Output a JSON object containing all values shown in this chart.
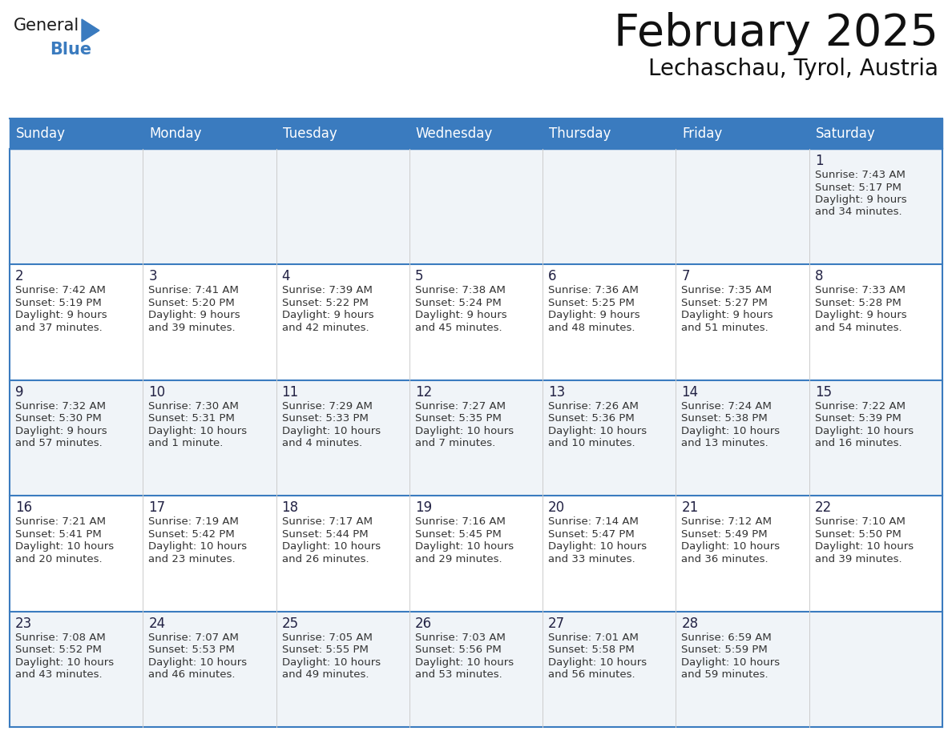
{
  "title": "February 2025",
  "subtitle": "Lechaschau, Tyrol, Austria",
  "header_bg": "#3a7bbf",
  "header_text_color": "#ffffff",
  "grid_line_color": "#3a7bbf",
  "day_headers": [
    "Sunday",
    "Monday",
    "Tuesday",
    "Wednesday",
    "Thursday",
    "Friday",
    "Saturday"
  ],
  "days": [
    {
      "day": 1,
      "col": 6,
      "row": 0,
      "sunrise": "7:43 AM",
      "sunset": "5:17 PM",
      "daylight": "9 hours and 34 minutes."
    },
    {
      "day": 2,
      "col": 0,
      "row": 1,
      "sunrise": "7:42 AM",
      "sunset": "5:19 PM",
      "daylight": "9 hours and 37 minutes."
    },
    {
      "day": 3,
      "col": 1,
      "row": 1,
      "sunrise": "7:41 AM",
      "sunset": "5:20 PM",
      "daylight": "9 hours and 39 minutes."
    },
    {
      "day": 4,
      "col": 2,
      "row": 1,
      "sunrise": "7:39 AM",
      "sunset": "5:22 PM",
      "daylight": "9 hours and 42 minutes."
    },
    {
      "day": 5,
      "col": 3,
      "row": 1,
      "sunrise": "7:38 AM",
      "sunset": "5:24 PM",
      "daylight": "9 hours and 45 minutes."
    },
    {
      "day": 6,
      "col": 4,
      "row": 1,
      "sunrise": "7:36 AM",
      "sunset": "5:25 PM",
      "daylight": "9 hours and 48 minutes."
    },
    {
      "day": 7,
      "col": 5,
      "row": 1,
      "sunrise": "7:35 AM",
      "sunset": "5:27 PM",
      "daylight": "9 hours and 51 minutes."
    },
    {
      "day": 8,
      "col": 6,
      "row": 1,
      "sunrise": "7:33 AM",
      "sunset": "5:28 PM",
      "daylight": "9 hours and 54 minutes."
    },
    {
      "day": 9,
      "col": 0,
      "row": 2,
      "sunrise": "7:32 AM",
      "sunset": "5:30 PM",
      "daylight": "9 hours and 57 minutes."
    },
    {
      "day": 10,
      "col": 1,
      "row": 2,
      "sunrise": "7:30 AM",
      "sunset": "5:31 PM",
      "daylight": "10 hours and 1 minute."
    },
    {
      "day": 11,
      "col": 2,
      "row": 2,
      "sunrise": "7:29 AM",
      "sunset": "5:33 PM",
      "daylight": "10 hours and 4 minutes."
    },
    {
      "day": 12,
      "col": 3,
      "row": 2,
      "sunrise": "7:27 AM",
      "sunset": "5:35 PM",
      "daylight": "10 hours and 7 minutes."
    },
    {
      "day": 13,
      "col": 4,
      "row": 2,
      "sunrise": "7:26 AM",
      "sunset": "5:36 PM",
      "daylight": "10 hours and 10 minutes."
    },
    {
      "day": 14,
      "col": 5,
      "row": 2,
      "sunrise": "7:24 AM",
      "sunset": "5:38 PM",
      "daylight": "10 hours and 13 minutes."
    },
    {
      "day": 15,
      "col": 6,
      "row": 2,
      "sunrise": "7:22 AM",
      "sunset": "5:39 PM",
      "daylight": "10 hours and 16 minutes."
    },
    {
      "day": 16,
      "col": 0,
      "row": 3,
      "sunrise": "7:21 AM",
      "sunset": "5:41 PM",
      "daylight": "10 hours and 20 minutes."
    },
    {
      "day": 17,
      "col": 1,
      "row": 3,
      "sunrise": "7:19 AM",
      "sunset": "5:42 PM",
      "daylight": "10 hours and 23 minutes."
    },
    {
      "day": 18,
      "col": 2,
      "row": 3,
      "sunrise": "7:17 AM",
      "sunset": "5:44 PM",
      "daylight": "10 hours and 26 minutes."
    },
    {
      "day": 19,
      "col": 3,
      "row": 3,
      "sunrise": "7:16 AM",
      "sunset": "5:45 PM",
      "daylight": "10 hours and 29 minutes."
    },
    {
      "day": 20,
      "col": 4,
      "row": 3,
      "sunrise": "7:14 AM",
      "sunset": "5:47 PM",
      "daylight": "10 hours and 33 minutes."
    },
    {
      "day": 21,
      "col": 5,
      "row": 3,
      "sunrise": "7:12 AM",
      "sunset": "5:49 PM",
      "daylight": "10 hours and 36 minutes."
    },
    {
      "day": 22,
      "col": 6,
      "row": 3,
      "sunrise": "7:10 AM",
      "sunset": "5:50 PM",
      "daylight": "10 hours and 39 minutes."
    },
    {
      "day": 23,
      "col": 0,
      "row": 4,
      "sunrise": "7:08 AM",
      "sunset": "5:52 PM",
      "daylight": "10 hours and 43 minutes."
    },
    {
      "day": 24,
      "col": 1,
      "row": 4,
      "sunrise": "7:07 AM",
      "sunset": "5:53 PM",
      "daylight": "10 hours and 46 minutes."
    },
    {
      "day": 25,
      "col": 2,
      "row": 4,
      "sunrise": "7:05 AM",
      "sunset": "5:55 PM",
      "daylight": "10 hours and 49 minutes."
    },
    {
      "day": 26,
      "col": 3,
      "row": 4,
      "sunrise": "7:03 AM",
      "sunset": "5:56 PM",
      "daylight": "10 hours and 53 minutes."
    },
    {
      "day": 27,
      "col": 4,
      "row": 4,
      "sunrise": "7:01 AM",
      "sunset": "5:58 PM",
      "daylight": "10 hours and 56 minutes."
    },
    {
      "day": 28,
      "col": 5,
      "row": 4,
      "sunrise": "6:59 AM",
      "sunset": "5:59 PM",
      "daylight": "10 hours and 59 minutes."
    }
  ],
  "logo_text_general": "General",
  "logo_text_blue": "Blue",
  "logo_triangle_color": "#3a7bbf"
}
